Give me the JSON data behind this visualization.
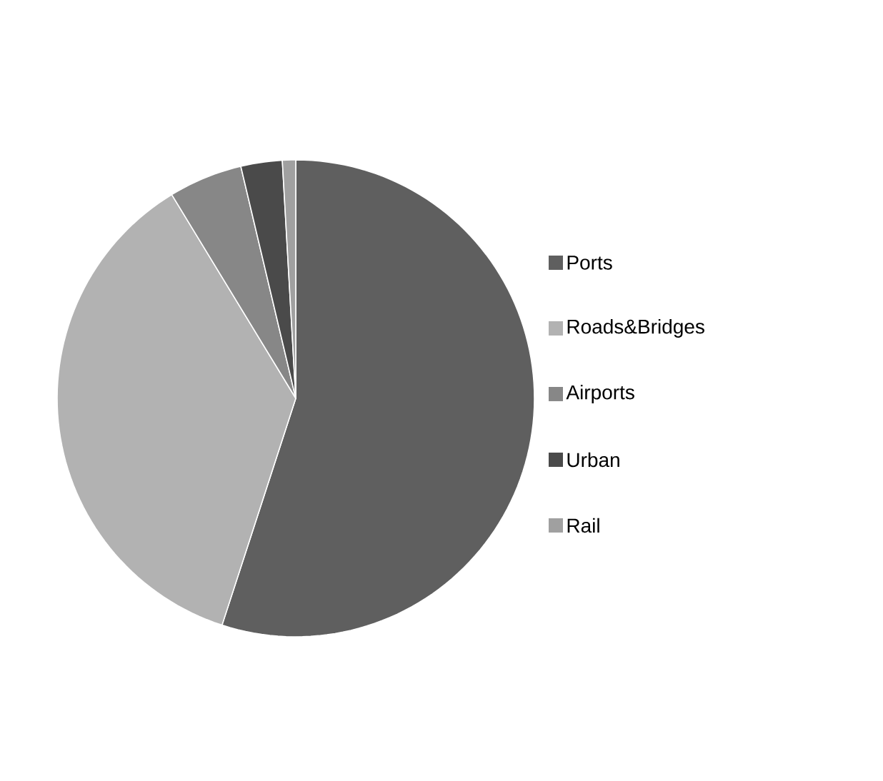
{
  "chart_data": {
    "type": "pie",
    "categories": [
      "Ports",
      "Roads&Bridges",
      "Airports",
      "Urban",
      "Rail"
    ],
    "values": [
      55.0,
      36.3,
      5.0,
      2.8,
      0.9
    ],
    "colors": [
      "#5f5f5f",
      "#b2b2b2",
      "#878787",
      "#4a4a4a",
      "#a0a0a0"
    ],
    "legend": "right"
  }
}
